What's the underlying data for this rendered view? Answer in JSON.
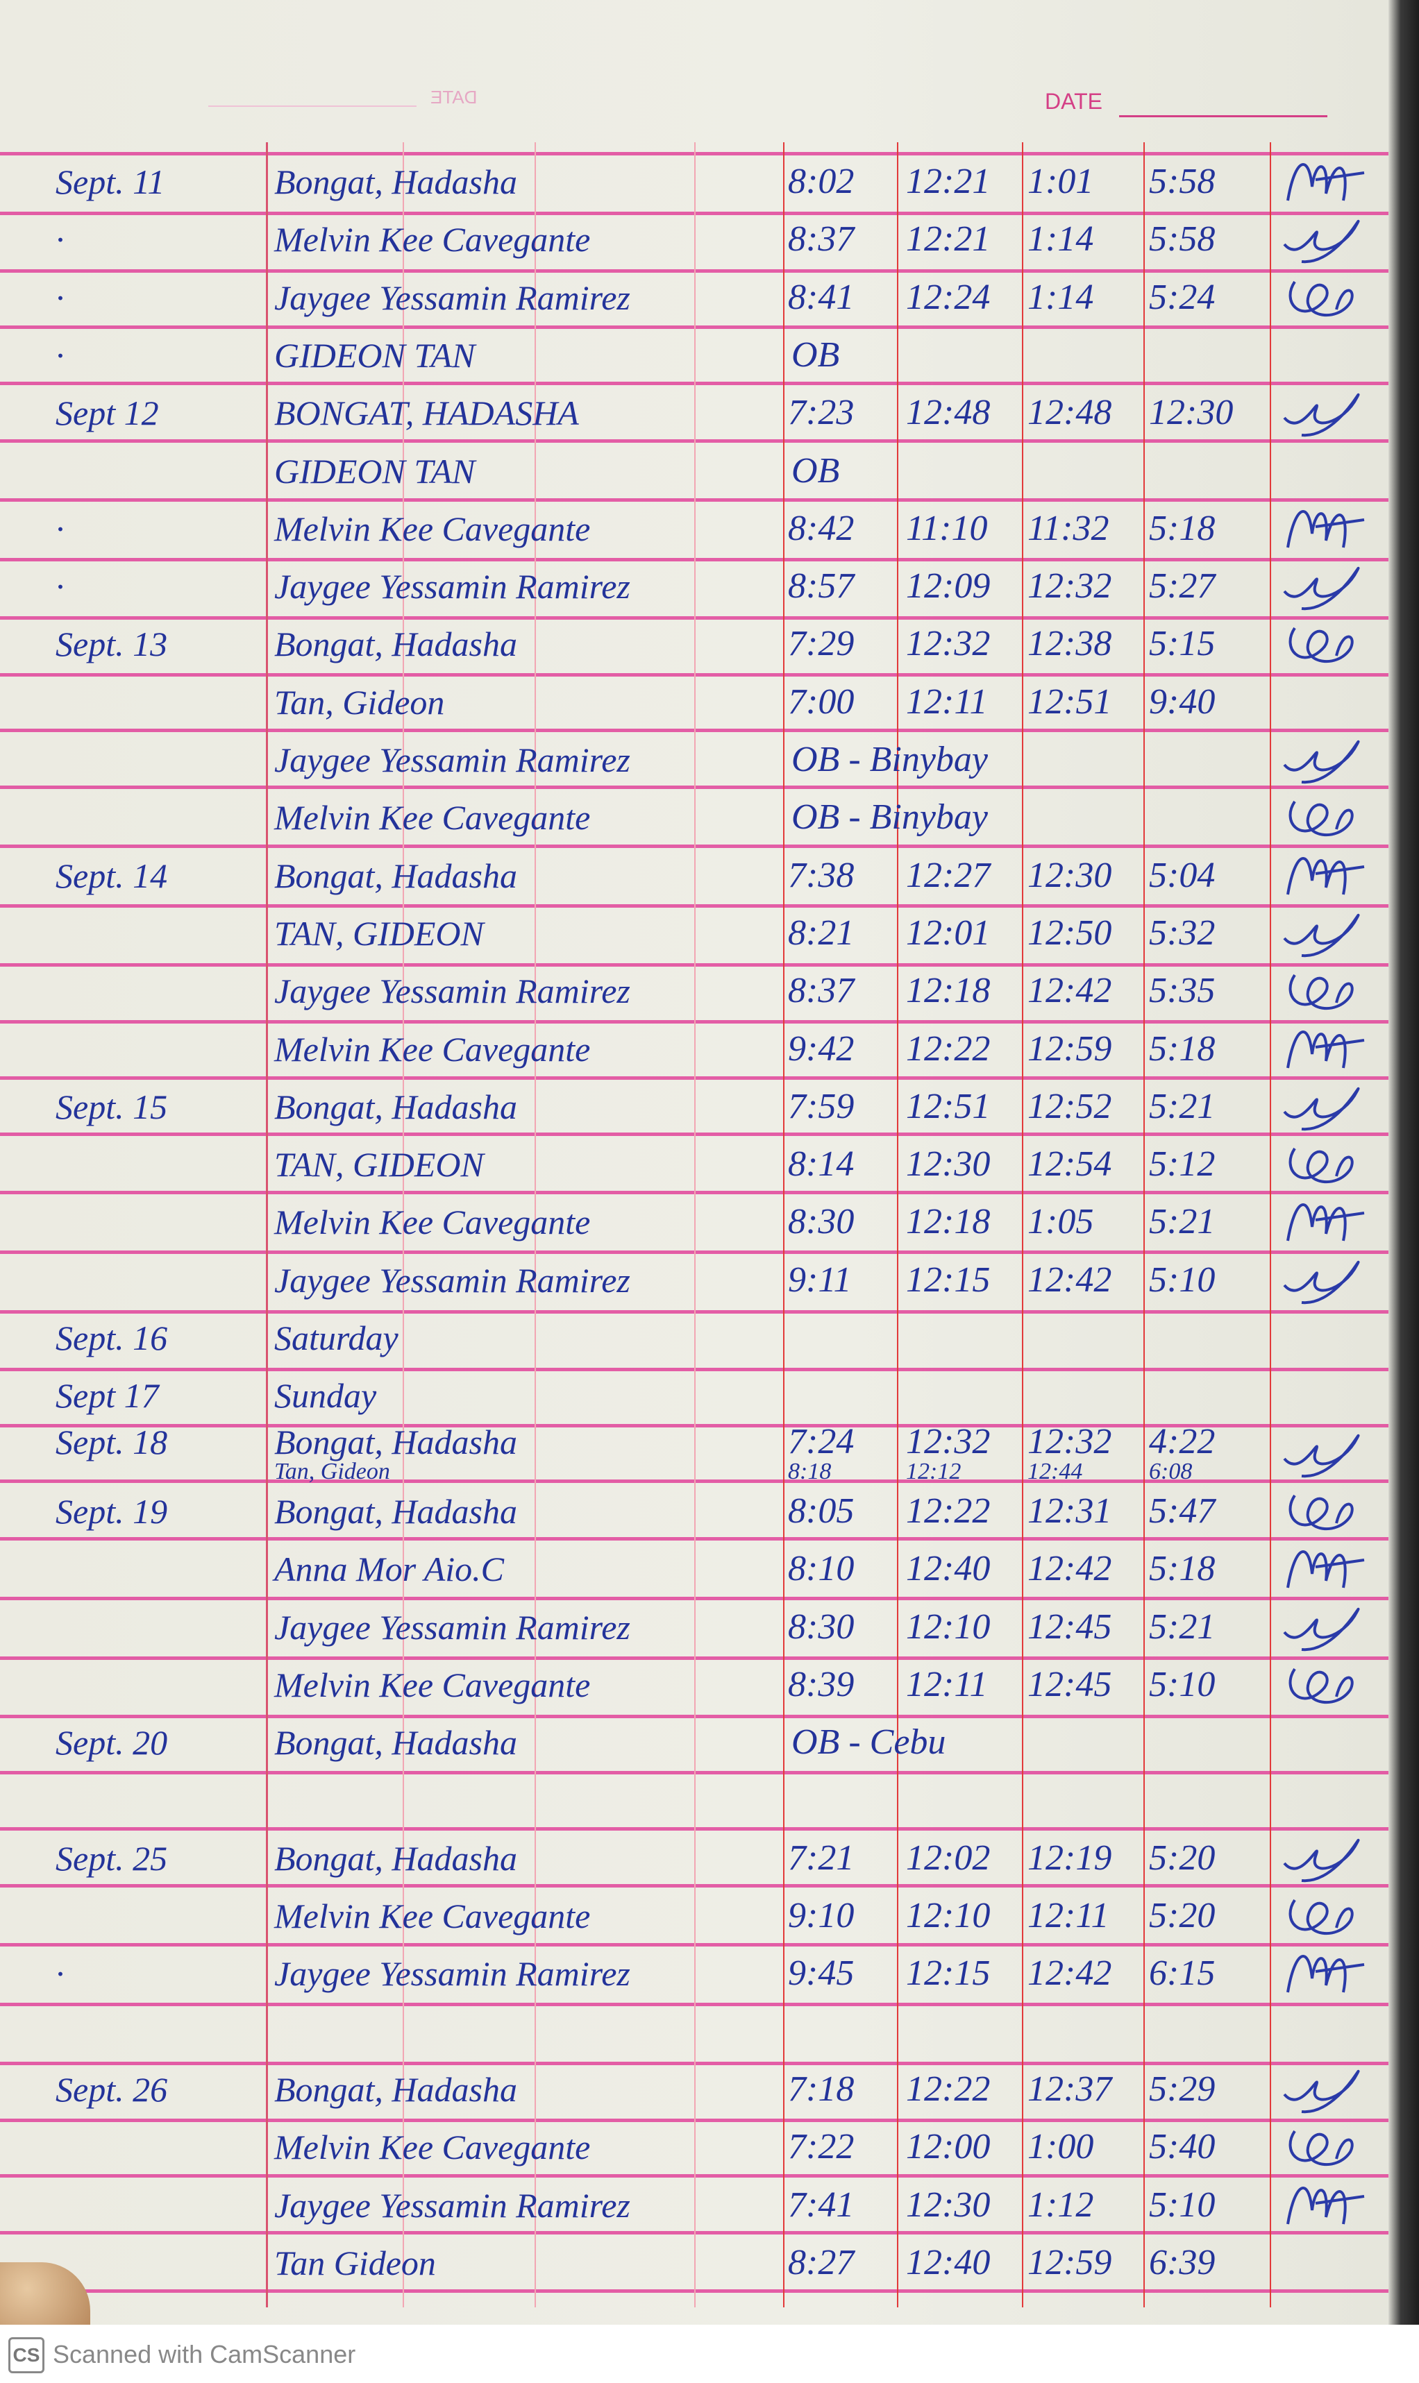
{
  "header": {
    "date_label": "DATE",
    "ghost_date_label": "DATE"
  },
  "colors": {
    "ink": "#23339a",
    "rule": "#e0439a",
    "margin_rule": "#e23a3a"
  },
  "entries": [
    {
      "line": 0,
      "date": "Sept. 11",
      "name": "Bongat, Hadasha",
      "times": [
        "8:02",
        "12:21",
        "1:01",
        "5:58"
      ],
      "signed": true
    },
    {
      "line": 1,
      "date": "·",
      "name": "Melvin Kee Cavegante",
      "times": [
        "8:37",
        "12:21",
        "1:14",
        "5:58"
      ],
      "signed": true
    },
    {
      "line": 2,
      "date": "·",
      "name": "Jaygee Yessamin Ramirez",
      "times": [
        "8:41",
        "12:24",
        "1:14",
        "5:24"
      ],
      "signed": true
    },
    {
      "line": 3,
      "date": "·",
      "name": "GIDEON TAN",
      "note": "OB",
      "signed": false
    },
    {
      "line": 4,
      "date": "Sept 12",
      "name": "BONGAT, HADASHA",
      "times": [
        "7:23",
        "12:48",
        "12:48",
        "12:30"
      ],
      "signed": true
    },
    {
      "line": 5,
      "name": "GIDEON TAN",
      "note": "OB",
      "signed": false
    },
    {
      "line": 6,
      "date": "·",
      "name": "Melvin Kee Cavegante",
      "times": [
        "8:42",
        "11:10",
        "11:32",
        "5:18"
      ],
      "signed": true
    },
    {
      "line": 7,
      "date": "·",
      "name": "Jaygee Yessamin Ramirez",
      "times": [
        "8:57",
        "12:09",
        "12:32",
        "5:27"
      ],
      "signed": true
    },
    {
      "line": 8,
      "date": "Sept. 13",
      "name": "Bongat, Hadasha",
      "times": [
        "7:29",
        "12:32",
        "12:38",
        "5:15"
      ],
      "signed": true
    },
    {
      "line": 9,
      "name": "Tan, Gideon",
      "times": [
        "7:00",
        "12:11",
        "12:51",
        "9:40"
      ],
      "signed": false
    },
    {
      "line": 10,
      "name": "Jaygee Yessamin Ramirez",
      "note": "OB - Binybay",
      "signed": true
    },
    {
      "line": 11,
      "name": "Melvin Kee Cavegante",
      "note": "OB - Binybay",
      "signed": true
    },
    {
      "line": 12,
      "date": "Sept. 14",
      "name": "Bongat, Hadasha",
      "times": [
        "7:38",
        "12:27",
        "12:30",
        "5:04"
      ],
      "signed": true
    },
    {
      "line": 13,
      "name": "TAN, GIDEON",
      "times": [
        "8:21",
        "12:01",
        "12:50",
        "5:32"
      ],
      "signed": true
    },
    {
      "line": 14,
      "name": "Jaygee Yessamin Ramirez",
      "times": [
        "8:37",
        "12:18",
        "12:42",
        "5:35"
      ],
      "signed": true
    },
    {
      "line": 15,
      "name": "Melvin Kee Cavegante",
      "times": [
        "9:42",
        "12:22",
        "12:59",
        "5:18"
      ],
      "signed": true
    },
    {
      "line": 16,
      "date": "Sept. 15",
      "name": "Bongat, Hadasha",
      "times": [
        "7:59",
        "12:51",
        "12:52",
        "5:21"
      ],
      "signed": true
    },
    {
      "line": 17,
      "name": "TAN, GIDEON",
      "times": [
        "8:14",
        "12:30",
        "12:54",
        "5:12"
      ],
      "signed": true
    },
    {
      "line": 18,
      "name": "Melvin Kee Cavegante",
      "times": [
        "8:30",
        "12:18",
        "1:05",
        "5:21"
      ],
      "signed": true
    },
    {
      "line": 19,
      "name": "Jaygee Yessamin Ramirez",
      "times": [
        "9:11",
        "12:15",
        "12:42",
        "5:10"
      ],
      "signed": true
    },
    {
      "line": 20,
      "date": "Sept. 16",
      "name": "Saturday",
      "signed": false
    },
    {
      "line": 21,
      "date": "Sept 17",
      "name": "Sunday",
      "signed": false
    },
    {
      "line": 22,
      "date": "Sept. 18",
      "name": "Bongat, Hadasha",
      "times": [
        "7:24",
        "12:32",
        "12:32",
        "4:22"
      ],
      "signed": true,
      "overlay": {
        "name": "Tan, Gideon",
        "times": [
          "8:18",
          "12:12",
          "12:44",
          "6:08"
        ]
      }
    },
    {
      "line": 23,
      "date": "Sept. 19",
      "name": "Bongat, Hadasha",
      "times": [
        "8:05",
        "12:22",
        "12:31",
        "5:47"
      ],
      "signed": true
    },
    {
      "line": 24,
      "name": "Anna Mor Aio.C",
      "times": [
        "8:10",
        "12:40",
        "12:42",
        "5:18"
      ],
      "signed": true
    },
    {
      "line": 25,
      "name": "Jaygee Yessamin Ramirez",
      "times": [
        "8:30",
        "12:10",
        "12:45",
        "5:21"
      ],
      "signed": true
    },
    {
      "line": 26,
      "name": "Melvin Kee Cavegante",
      "times": [
        "8:39",
        "12:11",
        "12:45",
        "5:10"
      ],
      "signed": true
    },
    {
      "line": 27,
      "date": "Sept. 20",
      "name": "Bongat, Hadasha",
      "note": "OB - Cebu",
      "signed": false
    },
    {
      "line": 29,
      "date": "Sept. 25",
      "name": "Bongat, Hadasha",
      "times": [
        "7:21",
        "12:02",
        "12:19",
        "5:20"
      ],
      "signed": true
    },
    {
      "line": 30,
      "name": "Melvin Kee Cavegante",
      "times": [
        "9:10",
        "12:10",
        "12:11",
        "5:20"
      ],
      "signed": true
    },
    {
      "line": 31,
      "date": "·",
      "name": "Jaygee Yessamin Ramirez",
      "times": [
        "9:45",
        "12:15",
        "12:42",
        "6:15"
      ],
      "signed": true
    },
    {
      "line": 33,
      "date": "Sept. 26",
      "name": "Bongat, Hadasha",
      "times": [
        "7:18",
        "12:22",
        "12:37",
        "5:29"
      ],
      "signed": true
    },
    {
      "line": 34,
      "name": "Melvin Kee Cavegante",
      "times": [
        "7:22",
        "12:00",
        "1:00",
        "5:40"
      ],
      "signed": true
    },
    {
      "line": 35,
      "name": "Jaygee Yessamin Ramirez",
      "times": [
        "7:41",
        "12:30",
        "1:12",
        "5:10"
      ],
      "signed": true
    },
    {
      "line": 36,
      "name": "Tan Gideon",
      "times": [
        "8:27",
        "12:40",
        "12:59",
        "6:39"
      ],
      "signed": false
    }
  ],
  "footer": {
    "logo": "CS",
    "text": "Scanned with CamScanner"
  }
}
